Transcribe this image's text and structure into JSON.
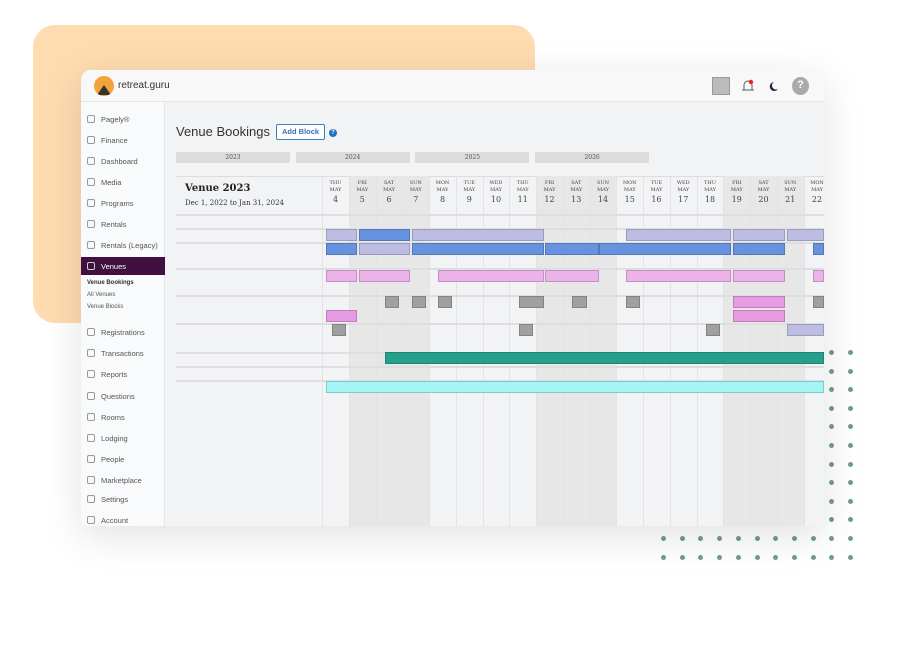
{
  "app": {
    "brand": "retreat.guru",
    "page_title": "Venue Bookings",
    "add_block_label": "Add Block",
    "help": "?"
  },
  "sidebar": {
    "items": [
      {
        "label": "Pagely®",
        "icon": "pagely-icon"
      },
      {
        "label": "Finance",
        "icon": "dollar-icon"
      },
      {
        "label": "Dashboard",
        "icon": "home-icon"
      },
      {
        "label": "Media",
        "icon": "media-icon"
      },
      {
        "label": "Programs",
        "icon": "calendar-icon"
      },
      {
        "label": "Rentals",
        "icon": "calendar-icon"
      },
      {
        "label": "Rentals (Legacy)",
        "icon": "calendar-icon"
      },
      {
        "label": "Venues",
        "icon": "building-icon",
        "active": true
      },
      {
        "label": "Registrations",
        "icon": "users-icon"
      },
      {
        "label": "Transactions",
        "icon": "dollar-icon"
      },
      {
        "label": "Reports",
        "icon": "report-icon"
      },
      {
        "label": "Questions",
        "icon": "comment-icon"
      },
      {
        "label": "Rooms",
        "icon": "clipboard-icon"
      },
      {
        "label": "Lodging",
        "icon": "clipboard-icon"
      },
      {
        "label": "People",
        "icon": "people-icon"
      },
      {
        "label": "Marketplace",
        "icon": "comment-icon"
      },
      {
        "label": "Settings",
        "icon": "sliders-icon"
      },
      {
        "label": "Account",
        "icon": "user-circle-icon"
      }
    ],
    "subitems": [
      "Venue Bookings",
      "All Venues",
      "Venue Blocks"
    ]
  },
  "years": [
    "2023",
    "2024",
    "2025",
    "2026"
  ],
  "venue": {
    "name": "Venue 2023",
    "range": "Dec 1, 2022 to Jan 31, 2024"
  },
  "days": [
    {
      "dow": "THU",
      "mon": "MAY",
      "d": "4"
    },
    {
      "dow": "FRI",
      "mon": "MAY",
      "d": "5",
      "we": true
    },
    {
      "dow": "SAT",
      "mon": "MAY",
      "d": "6",
      "we": true
    },
    {
      "dow": "SUN",
      "mon": "MAY",
      "d": "7",
      "we": true
    },
    {
      "dow": "MON",
      "mon": "MAY",
      "d": "8"
    },
    {
      "dow": "TUE",
      "mon": "MAY",
      "d": "9"
    },
    {
      "dow": "WED",
      "mon": "MAY",
      "d": "10"
    },
    {
      "dow": "THU",
      "mon": "MAY",
      "d": "11"
    },
    {
      "dow": "FRI",
      "mon": "MAY",
      "d": "12",
      "we": true
    },
    {
      "dow": "SAT",
      "mon": "MAY",
      "d": "13",
      "we": true
    },
    {
      "dow": "SUN",
      "mon": "MAY",
      "d": "14",
      "we": true
    },
    {
      "dow": "MON",
      "mon": "MAY",
      "d": "15"
    },
    {
      "dow": "TUE",
      "mon": "MAY",
      "d": "16"
    },
    {
      "dow": "WED",
      "mon": "MAY",
      "d": "17"
    },
    {
      "dow": "THU",
      "mon": "MAY",
      "d": "18"
    },
    {
      "dow": "FRI",
      "mon": "MAY",
      "d": "19",
      "we": true
    },
    {
      "dow": "SAT",
      "mon": "MAY",
      "d": "20",
      "we": true
    },
    {
      "dow": "SUN",
      "mon": "MAY",
      "d": "21",
      "we": true
    },
    {
      "dow": "MON",
      "mon": "MAY",
      "d": "22"
    }
  ],
  "colors": {
    "lavender": "#bdbde3",
    "blue": "#6792df",
    "pink": "#ecb2ea",
    "magenta": "#e79be2",
    "gray": "#a0a0a0",
    "teal": "#25a08b",
    "cyan": "#a3f5f5",
    "accent": "#3f1040",
    "blob": "#fedcb0"
  },
  "bookings": [
    {
      "row": 0,
      "bars": [
        [
          0.15,
          1.31,
          "lavender"
        ],
        [
          1.39,
          3.3,
          "blue"
        ],
        [
          3.37,
          8.31,
          "lavender"
        ],
        [
          11.35,
          15.28,
          "lavender"
        ],
        [
          15.36,
          17.3,
          "lavender"
        ],
        [
          17.38,
          19,
          "lavender"
        ]
      ]
    },
    {
      "row": 1,
      "bars": [
        [
          0.15,
          1.31,
          "blue"
        ],
        [
          1.39,
          3.3,
          "lavender"
        ],
        [
          3.37,
          8.31,
          "blue"
        ],
        [
          8.35,
          10.34,
          "blue"
        ],
        [
          10.37,
          15.28,
          "blue"
        ],
        [
          15.36,
          17.3,
          "blue"
        ],
        [
          18.35,
          19,
          "blue"
        ]
      ]
    },
    {
      "row": 2,
      "bars": [
        [
          0.15,
          1.31,
          "pink"
        ],
        [
          1.39,
          3.3,
          "pink"
        ],
        [
          4.34,
          8.31,
          "pink"
        ],
        [
          8.35,
          10.34,
          "pink"
        ],
        [
          11.35,
          15.28,
          "pink"
        ],
        [
          15.36,
          17.3,
          "pink"
        ],
        [
          18.35,
          19,
          "pink"
        ]
      ]
    },
    {
      "row": 3,
      "bars": [
        [
          2.36,
          2.88,
          "gray"
        ],
        [
          3.37,
          3.9,
          "gray"
        ],
        [
          4.34,
          4.87,
          "gray"
        ],
        [
          7.38,
          8.31,
          "gray"
        ],
        [
          9.36,
          9.89,
          "gray"
        ],
        [
          11.35,
          11.87,
          "gray"
        ],
        [
          15.36,
          17.3,
          "magenta"
        ],
        [
          18.35,
          19,
          "gray"
        ]
      ]
    },
    {
      "row": 4,
      "bars": [
        [
          0.15,
          1.31,
          "magenta"
        ],
        [
          15.36,
          17.3,
          "magenta"
        ]
      ]
    },
    {
      "row": 5,
      "bars": [
        [
          0.37,
          0.9,
          "gray"
        ],
        [
          7.38,
          7.87,
          "gray"
        ],
        [
          14.34,
          14.87,
          "gray"
        ],
        [
          17.38,
          19,
          "lavender"
        ]
      ]
    },
    {
      "row": 6,
      "bars": [
        [
          2.36,
          19,
          "teal"
        ]
      ]
    },
    {
      "row": 7,
      "bars": [
        [
          0.15,
          19,
          "cyan"
        ]
      ]
    }
  ]
}
